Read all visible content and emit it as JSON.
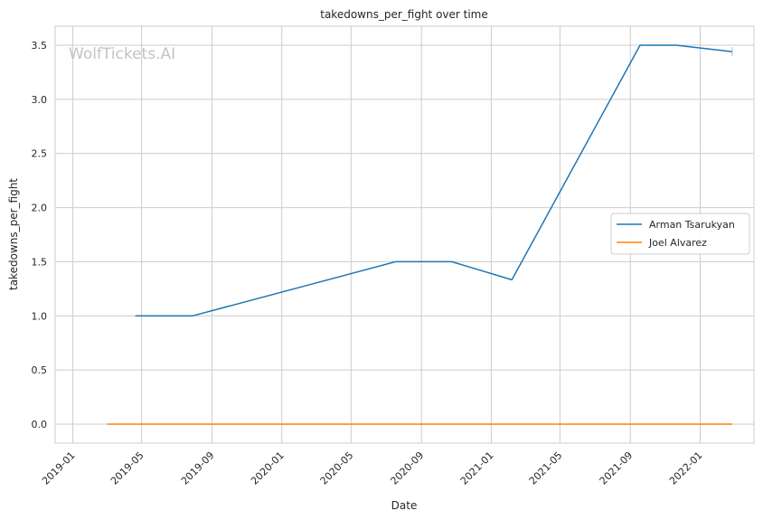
{
  "watermark": "WolfTickets.AI",
  "chart_data": {
    "type": "line",
    "title": "takedowns_per_fight over time",
    "xlabel": "Date",
    "ylabel": "takedowns_per_fight",
    "xlim": [
      "2018-12-01",
      "2022-04-05"
    ],
    "ylim": [
      -0.175,
      3.675
    ],
    "x_ticks": [
      "2019-01",
      "2019-05",
      "2019-09",
      "2020-01",
      "2020-05",
      "2020-09",
      "2021-01",
      "2021-05",
      "2021-09",
      "2022-01"
    ],
    "y_ticks": [
      "0.0",
      "0.5",
      "1.0",
      "1.5",
      "2.0",
      "2.5",
      "3.0",
      "3.5"
    ],
    "grid": true,
    "legend_position": "center-right",
    "series": [
      {
        "name": "Arman Tsarukyan",
        "color": "#1f77b4",
        "points": [
          {
            "x": "2019-04-20",
            "y": 1.0
          },
          {
            "x": "2019-07-29",
            "y": 1.0
          },
          {
            "x": "2020-07-18",
            "y": 1.5
          },
          {
            "x": "2020-10-24",
            "y": 1.5
          },
          {
            "x": "2021-02-06",
            "y": 1.333
          },
          {
            "x": "2021-09-18",
            "y": 3.5
          },
          {
            "x": "2021-11-20",
            "y": 3.5
          },
          {
            "x": "2022-02-26",
            "y": 3.44
          }
        ]
      },
      {
        "name": "Joel Alvarez",
        "color": "#ff7f0e",
        "points": [
          {
            "x": "2019-03-02",
            "y": 0.0
          },
          {
            "x": "2022-02-26",
            "y": 0.0
          }
        ]
      }
    ]
  }
}
